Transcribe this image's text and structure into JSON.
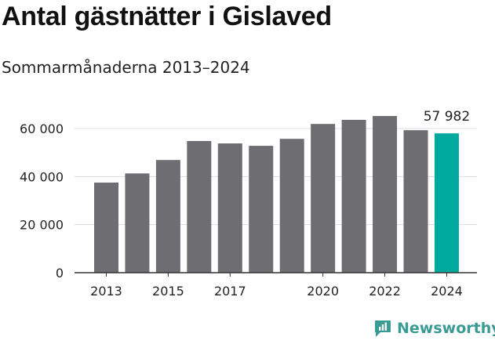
{
  "header": {
    "title": "Antal gästnätter i Gislaved",
    "subtitle": "Sommarmånaderna 2013–2024"
  },
  "brand": {
    "name": "Newsworthy",
    "icon": "newsworthy-logo-icon",
    "color": "#3a9a94"
  },
  "colors": {
    "bar": "#6e6d72",
    "highlight": "#00a99d",
    "grid": "#dddddd",
    "axis": "#333333"
  },
  "chart_data": {
    "type": "bar",
    "title": "Antal gästnätter i Gislaved",
    "subtitle": "Sommarmånaderna 2013–2024",
    "categories": [
      "2013",
      "2014",
      "2015",
      "2016",
      "2017",
      "2018",
      "2019",
      "2020",
      "2021",
      "2022",
      "2023",
      "2024"
    ],
    "values": [
      37500,
      41300,
      46900,
      54800,
      53800,
      52800,
      55700,
      61900,
      63600,
      65200,
      59300,
      57982
    ],
    "x_tick_labels": [
      "2013",
      "2015",
      "2017",
      "2020",
      "2022",
      "2024"
    ],
    "y_ticks": [
      0,
      20000,
      40000,
      60000
    ],
    "y_tick_labels": [
      "0",
      "20 000",
      "40 000",
      "60 000"
    ],
    "ylim": [
      0,
      60000
    ],
    "grid": true,
    "highlight_category": "2024",
    "annotation": {
      "category": "2024",
      "label": "57 982"
    },
    "xlabel": "",
    "ylabel": ""
  }
}
